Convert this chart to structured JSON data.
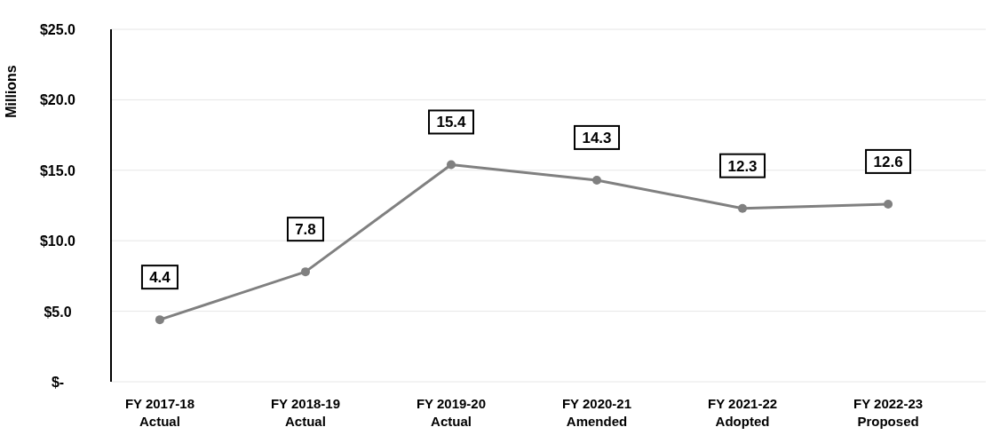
{
  "chart_data": {
    "type": "line",
    "ylabel": "Millions",
    "categories": [
      "FY 2017-18\nActual",
      "FY 2018-19\nActual",
      "FY 2019-20\nActual",
      "FY 2020-21\nAmended",
      "FY 2021-22\nAdopted",
      "FY 2022-23\nProposed"
    ],
    "series": [
      {
        "color": "#808080",
        "values": [
          4.4,
          7.8,
          15.4,
          14.3,
          12.3,
          12.6
        ]
      }
    ],
    "ylim": [
      0,
      25
    ],
    "yticks": [
      {
        "value": 0,
        "label": "$-"
      },
      {
        "value": 5,
        "label": "$5.0"
      },
      {
        "value": 10,
        "label": "$10.0"
      },
      {
        "value": 15,
        "label": "$15.0"
      },
      {
        "value": 20,
        "label": "$20.0"
      },
      {
        "value": 25,
        "label": "$25.0"
      }
    ],
    "grid": "y",
    "marker": "circle",
    "line_style": "solid",
    "data_labels": true
  }
}
